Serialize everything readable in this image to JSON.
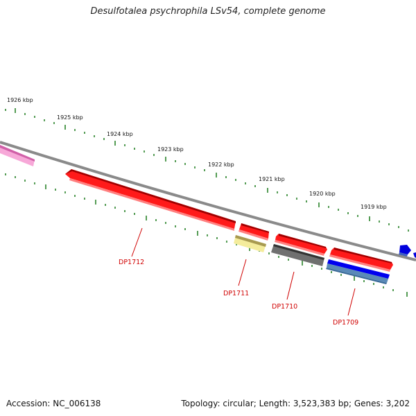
{
  "title": "Desulfotalea psychrophila LSv54, complete genome",
  "footer": {
    "accession": "Accession: NC_006138",
    "summary": "Topology: circular; Length: 3,523,383 bp; Genes: 3,202"
  },
  "ruler": {
    "ticks": [
      "1926 kbp",
      "1925 kbp",
      "1924 kbp",
      "1923 kbp",
      "1922 kbp",
      "1921 kbp",
      "1920 kbp",
      "1919 kbp"
    ]
  },
  "genes": {
    "labels": [
      "DP1712",
      "DP1711",
      "DP1710",
      "DP1709"
    ]
  },
  "colors": {
    "red": "#ee0000",
    "pink": "#f088c8",
    "yellow": "#e8dc80",
    "gray": "#555555",
    "blue": "#0000dd",
    "backbone": "#777777",
    "tick": "#1a7a1a"
  }
}
